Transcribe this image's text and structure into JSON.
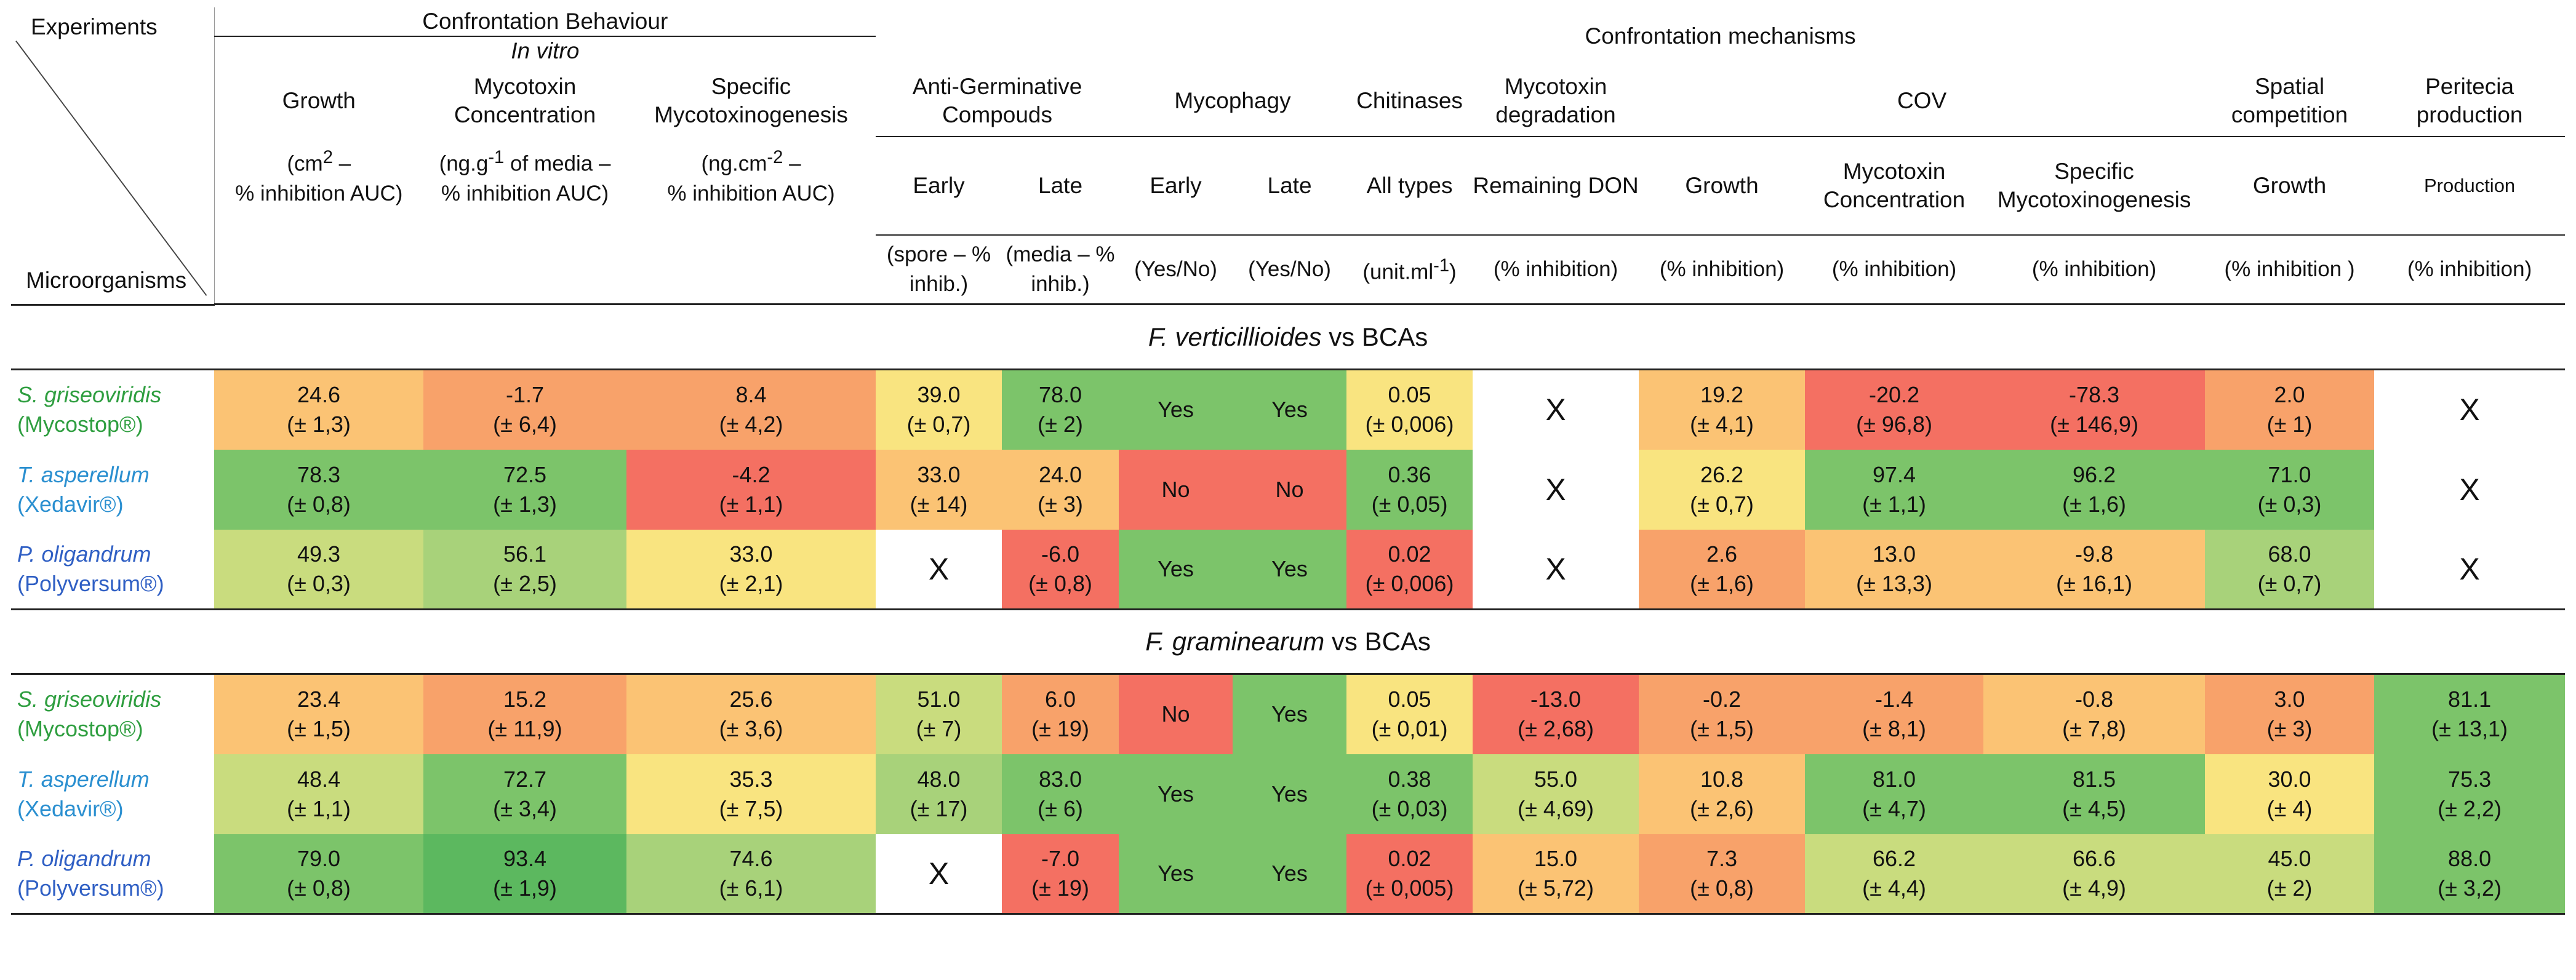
{
  "header": {
    "experiments": "Experiments",
    "microorganisms": "Microorganisms",
    "behaviour": "Confrontation Behaviour",
    "in_vitro": "In vitro",
    "mechanisms": "Confrontation mechanisms",
    "growth": "Growth",
    "myco_conc": "Mycotoxin Concentration",
    "spec_myco": "Specific Mycotoxinogenesis",
    "antigerm": "Anti-Germinative Compouds",
    "mycophagy": "Mycophagy",
    "chitinases": "Chitinases",
    "myco_deg": "Mycotoxin degradation",
    "cov": "COV",
    "spatial": "Spatial competition",
    "peritecia": "Peritecia production",
    "growth_unit_a": "(cm",
    "growth_unit_b": " –",
    "growth_unit_c": "% inhibition AUC)",
    "conc_unit_a": "(ng.g",
    "conc_unit_b": " of media –",
    "conc_unit_c": "% inhibition AUC)",
    "spec_unit_a": "(ng.cm",
    "spec_unit_b": " –",
    "spec_unit_c": "% inhibition AUC)",
    "sup2": "2",
    "supm1": "-1",
    "supm2": "-2",
    "early": "Early",
    "late": "Late",
    "all_types": "All types",
    "remaining_don": "Remaining DON",
    "cov_growth": "Growth",
    "cov_conc": "Mycotoxin Concentration",
    "cov_spec": "Specific Mycotoxinogenesis",
    "sp_growth": "Growth",
    "production": "Production",
    "u_spore": "(spore – % inhib.)",
    "u_media": "(media – % inhib.)",
    "u_yesno1": "(Yes/No)",
    "u_yesno2": "(Yes/No)",
    "u_unitml_a": "(unit.ml",
    "u_unitml_b": ")",
    "u_pct1": "(% inhibition)",
    "u_pct2": "(% inhibition)",
    "u_pct3": "(% inhibition)",
    "u_pct4": "(% inhibition)",
    "u_pct5": "(% inhibition )",
    "u_pct6": "(% inhibition)"
  },
  "sections": [
    {
      "pathogen": "F. verticillioides",
      "suffix": " vs BCAs"
    },
    {
      "pathogen": "F. graminearum",
      "suffix": " vs BCAs"
    }
  ],
  "organisms": [
    {
      "name": "S. griseoviridis",
      "product": "(Mycostop®)"
    },
    {
      "name": "T. asperellum",
      "product": "(Xedavir®)"
    },
    {
      "name": "P. oligandrum",
      "product": "(Polyversum®)"
    }
  ],
  "rows_fv": [
    [
      "24.6",
      "(± 1,3)",
      "-1.7",
      "(± 6,4)",
      "8.4",
      "(± 4,2)",
      "39.0",
      "(± 0,7)",
      "78.0",
      "(± 2)",
      "Yes",
      "Yes",
      "0.05",
      "(± 0,006)",
      "X",
      "19.2",
      "(± 4,1)",
      "-20.2",
      "(± 96,8)",
      "-78.3",
      "(± 146,9)",
      "2.0",
      "(± 1)",
      "X"
    ],
    [
      "78.3",
      "(± 0,8)",
      "72.5",
      "(± 1,3)",
      "-4.2",
      "(± 1,1)",
      "33.0",
      "(± 14)",
      "24.0",
      "(± 3)",
      "No",
      "No",
      "0.36",
      "(± 0,05)",
      "X",
      "26.2",
      "(± 0,7)",
      "97.4",
      "(± 1,1)",
      "96.2",
      "(± 1,6)",
      "71.0",
      "(± 0,3)",
      "X"
    ],
    [
      "49.3",
      "(± 0,3)",
      "56.1",
      "(± 2,5)",
      "33.0",
      "(± 2,1)",
      "X",
      "",
      "-6.0",
      "(± 0,8)",
      "Yes",
      "Yes",
      "0.02",
      "(± 0,006)",
      "X",
      "2.6",
      "(± 1,6)",
      "13.0",
      "(± 13,3)",
      "-9.8",
      "(± 16,1)",
      "68.0",
      "(± 0,7)",
      "X"
    ]
  ],
  "rows_fg": [
    [
      "23.4",
      "(± 1,5)",
      "15.2",
      "(± 11,9)",
      "25.6",
      "(± 3,6)",
      "51.0",
      "(± 7)",
      "6.0",
      "(± 19)",
      "No",
      "Yes",
      "0.05",
      "(± 0,01)",
      "-13.0",
      "(± 2,68)",
      "-0.2",
      "(± 1,5)",
      "-1.4",
      "(± 8,1)",
      "-0.8",
      "(± 7,8)",
      "3.0",
      "(±  3)",
      "81.1",
      "(± 13,1)"
    ],
    [
      "48.4",
      "(± 1,1)",
      "72.7",
      "(± 3,4)",
      "35.3",
      "(± 7,5)",
      "48.0",
      "(± 17)",
      "83.0",
      "(± 6)",
      "Yes",
      "Yes",
      "0.38",
      "(± 0,03)",
      "55.0",
      "(± 4,69)",
      "10.8",
      "(± 2,6)",
      "81.0",
      "(± 4,7)",
      "81.5",
      "(± 4,5)",
      "30.0",
      "(± 4)",
      "75.3",
      "(± 2,2)"
    ],
    [
      "79.0",
      "(± 0,8)",
      "93.4",
      "(± 1,9)",
      "74.6",
      "(± 6,1)",
      "X",
      "",
      "-7.0",
      "(± 19)",
      "Yes",
      "Yes",
      "0.02",
      "(± 0,005)",
      "15.0",
      "(± 5,72)",
      "7.3",
      "(± 0,8)",
      "66.2",
      "(± 4,4)",
      "66.6",
      "(± 4,9)",
      "45.0",
      "(± 2)",
      "88.0",
      "(± 3,2)"
    ]
  ],
  "colors": {
    "dkgreen": "#5cb85f",
    "green": "#7cc46a",
    "ltgreen": "#a8d27a",
    "lime": "#c9dc7e",
    "yellow": "#f9e480",
    "ltorange": "#fbc374",
    "orange": "#f8a26a",
    "red": "#f47062",
    "dkred": "#ef5a58",
    "white": "#ffffff"
  },
  "cell_colors_fv": [
    [
      "ltorange",
      "orange",
      "orange",
      "yellow",
      "green",
      "green",
      "green",
      "yellow",
      "white",
      "ltorange",
      "red",
      "red",
      "orange",
      "white"
    ],
    [
      "green",
      "green",
      "red",
      "ltorange",
      "ltorange",
      "red",
      "red",
      "green",
      "white",
      "yellow",
      "green",
      "green",
      "green",
      "white"
    ],
    [
      "lime",
      "ltgreen",
      "yellow",
      "white",
      "red",
      "green",
      "green",
      "red",
      "white",
      "orange",
      "ltorange",
      "ltorange",
      "ltgreen",
      "white"
    ]
  ],
  "cell_colors_fg": [
    [
      "ltorange",
      "orange",
      "ltorange",
      "lime",
      "orange",
      "red",
      "green",
      "yellow",
      "red",
      "orange",
      "orange",
      "ltorange",
      "orange",
      "green"
    ],
    [
      "lime",
      "green",
      "yellow",
      "ltgreen",
      "green",
      "green",
      "green",
      "green",
      "lime",
      "ltorange",
      "green",
      "green",
      "yellow",
      "green"
    ],
    [
      "green",
      "dkgreen",
      "ltgreen",
      "white",
      "red",
      "green",
      "green",
      "red",
      "ltorange",
      "orange",
      "lime",
      "lime",
      "lime",
      "green"
    ]
  ]
}
